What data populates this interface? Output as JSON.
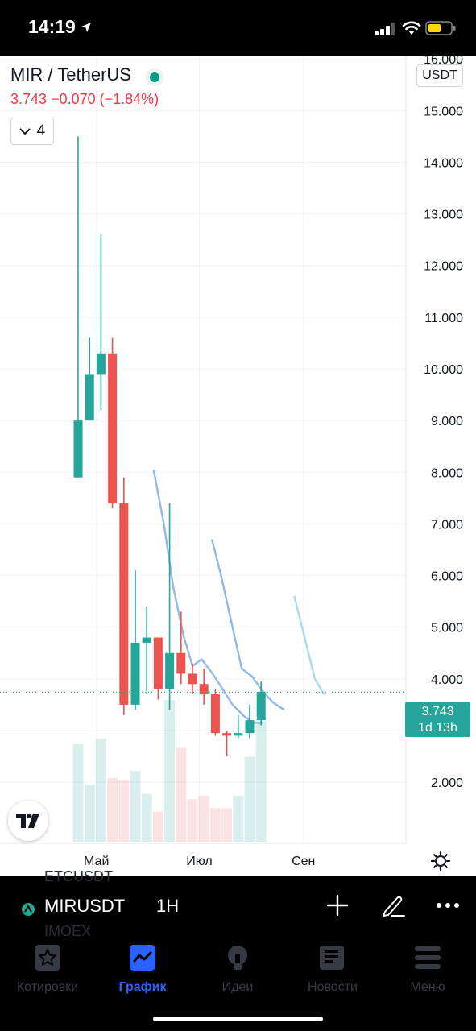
{
  "status_bar": {
    "time": "14:19"
  },
  "chart_header": {
    "symbol_title": "MIR / TetherUS",
    "last_price": "3.743",
    "change": "−0.070",
    "change_percent": "(−1.84%)",
    "indicator_count": "4",
    "currency": "USDT"
  },
  "chart_data": {
    "type": "candlestick",
    "x_ticks": [
      {
        "label": "Май",
        "bar_index": 1.6
      },
      {
        "label": "Июл",
        "bar_index": 10.6
      },
      {
        "label": "Сен",
        "bar_index": 19.7
      }
    ],
    "y_ticks": [
      "16.000",
      "15.000",
      "14.000",
      "13.000",
      "12.000",
      "11.000",
      "10.000",
      "9.000",
      "8.000",
      "7.000",
      "6.000",
      "5.000",
      "4.000",
      "3.000",
      "2.000"
    ],
    "ylim": [
      1.3,
      16.05
    ],
    "current_price_label": "3.743",
    "countdown_label": "1d 13h",
    "candles": [
      {
        "o": 7.9,
        "h": 14.5,
        "l": 7.9,
        "c": 9.0,
        "vol": 0.55
      },
      {
        "o": 9.0,
        "h": 10.6,
        "l": 9.0,
        "c": 9.9,
        "vol": 0.32
      },
      {
        "o": 9.9,
        "h": 12.6,
        "l": 9.2,
        "c": 10.3,
        "vol": 0.58
      },
      {
        "o": 10.3,
        "h": 10.6,
        "l": 7.3,
        "c": 7.4,
        "vol": 0.36
      },
      {
        "o": 7.4,
        "h": 7.9,
        "l": 3.3,
        "c": 3.5,
        "vol": 0.35
      },
      {
        "o": 3.5,
        "h": 6.1,
        "l": 3.4,
        "c": 4.7,
        "vol": 0.4
      },
      {
        "o": 4.7,
        "h": 5.4,
        "l": 3.7,
        "c": 4.8,
        "vol": 0.27
      },
      {
        "o": 4.8,
        "h": 4.8,
        "l": 3.6,
        "c": 3.8,
        "vol": 0.17
      },
      {
        "o": 3.8,
        "h": 7.4,
        "l": 3.4,
        "c": 4.5,
        "vol": 0.8
      },
      {
        "o": 4.5,
        "h": 5.3,
        "l": 3.9,
        "c": 4.1,
        "vol": 0.53
      },
      {
        "o": 4.1,
        "h": 4.3,
        "l": 3.7,
        "c": 3.9,
        "vol": 0.24
      },
      {
        "o": 3.9,
        "h": 4.2,
        "l": 3.5,
        "c": 3.7,
        "vol": 0.26
      },
      {
        "o": 3.7,
        "h": 3.8,
        "l": 2.9,
        "c": 2.95,
        "vol": 0.19
      },
      {
        "o": 2.95,
        "h": 3.0,
        "l": 2.5,
        "c": 2.9,
        "vol": 0.19
      },
      {
        "o": 2.9,
        "h": 3.3,
        "l": 2.85,
        "c": 2.95,
        "vol": 0.26
      },
      {
        "o": 2.95,
        "h": 3.5,
        "l": 2.85,
        "c": 3.2,
        "vol": 0.48
      },
      {
        "o": 3.2,
        "h": 3.95,
        "l": 3.1,
        "c": 3.75,
        "vol": 0.68
      }
    ],
    "ma_lines": [
      {
        "color": "#90b8e8",
        "points": [
          [
            6.6,
            8.05
          ],
          [
            7.5,
            7.0
          ],
          [
            8.3,
            5.8
          ],
          [
            9.2,
            4.85
          ],
          [
            10.0,
            4.25
          ],
          [
            10.8,
            4.38
          ],
          [
            11.6,
            4.15
          ],
          [
            12.5,
            3.85
          ],
          [
            13.5,
            3.5
          ],
          [
            14.5,
            3.28
          ],
          [
            15.3,
            3.15
          ],
          [
            16.2,
            3.15
          ]
        ]
      },
      {
        "color": "#90b8e8",
        "points": [
          [
            11.7,
            6.7
          ],
          [
            12.5,
            6.0
          ],
          [
            13.5,
            5.0
          ],
          [
            14.3,
            4.2
          ],
          [
            15.2,
            4.05
          ],
          [
            16.0,
            3.8
          ],
          [
            17.0,
            3.55
          ],
          [
            18.0,
            3.4
          ]
        ]
      },
      {
        "color": "#a8daf2",
        "points": [
          [
            18.9,
            5.6
          ],
          [
            19.8,
            4.8
          ],
          [
            20.7,
            4.0
          ],
          [
            21.5,
            3.7
          ]
        ]
      }
    ]
  },
  "bottom_toolbar": {
    "ghost_top": "ETCUSDT",
    "ghost_bottom": "IMOEX",
    "symbol": "MIRUSDT",
    "interval": "1H"
  },
  "tabs": [
    {
      "label": "Котировки",
      "icon": "star-icon",
      "active": false
    },
    {
      "label": "График",
      "icon": "chart-icon",
      "active": true
    },
    {
      "label": "Идеи",
      "icon": "bulb-icon",
      "active": false
    },
    {
      "label": "Новости",
      "icon": "news-icon",
      "active": false
    },
    {
      "label": "Меню",
      "icon": "menu-icon",
      "active": false
    }
  ],
  "colors": {
    "up": "#26a69a",
    "down": "#ef5350",
    "accent": "#2962ff",
    "price_change": "#f23645"
  }
}
